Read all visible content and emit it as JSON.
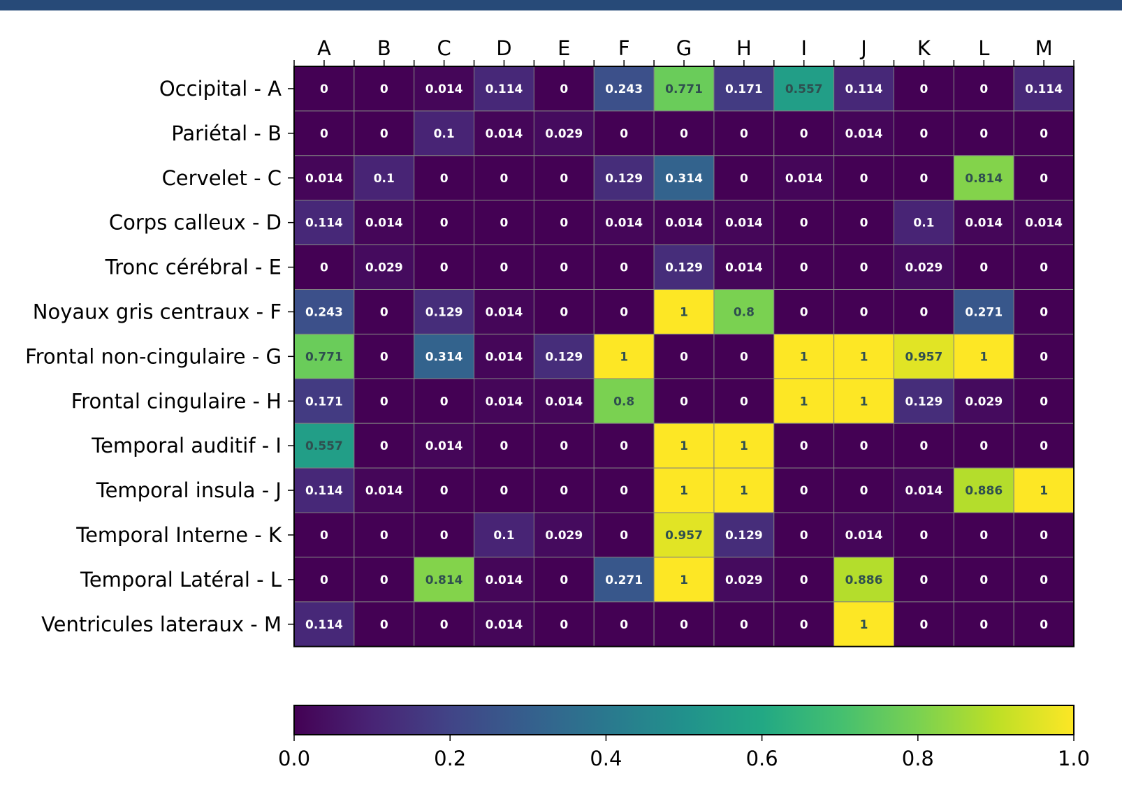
{
  "header": {
    "bar_color": "#274a78"
  },
  "chart_data": {
    "type": "heatmap",
    "x_labels": [
      "A",
      "B",
      "C",
      "D",
      "E",
      "F",
      "G",
      "H",
      "I",
      "J",
      "K",
      "L",
      "M"
    ],
    "y_labels": [
      "Occipital - A",
      "Pariétal - B",
      "Cervelet - C",
      "Corps calleux - D",
      "Tronc cérébral - E",
      "Noyaux gris centraux - F",
      "Frontal non-cingulaire - G",
      "Frontal cingulaire - H",
      "Temporal auditif - I",
      "Temporal insula - J",
      "Temporal Interne - K",
      "Temporal Latéral - L",
      "Ventricules lateraux - M"
    ],
    "values": [
      [
        0.0,
        0.0,
        0.014,
        0.114,
        0.0,
        0.243,
        0.771,
        0.171,
        0.557,
        0.114,
        0.0,
        0.0,
        0.114
      ],
      [
        0.0,
        0.0,
        0.1,
        0.014,
        0.029,
        0.0,
        0.0,
        0.0,
        0.0,
        0.014,
        0.0,
        0.0,
        0.0
      ],
      [
        0.014,
        0.1,
        0.0,
        0.0,
        0.0,
        0.129,
        0.314,
        0.0,
        0.014,
        0.0,
        0.0,
        0.814,
        0.0
      ],
      [
        0.114,
        0.014,
        0.0,
        0.0,
        0.0,
        0.014,
        0.014,
        0.014,
        0.0,
        0.0,
        0.1,
        0.014,
        0.014
      ],
      [
        0.0,
        0.029,
        0.0,
        0.0,
        0.0,
        0.0,
        0.129,
        0.014,
        0.0,
        0.0,
        0.029,
        0.0,
        0.0
      ],
      [
        0.243,
        0.0,
        0.129,
        0.014,
        0.0,
        0.0,
        1.0,
        0.8,
        0.0,
        0.0,
        0.0,
        0.271,
        0.0
      ],
      [
        0.771,
        0.0,
        0.314,
        0.014,
        0.129,
        1.0,
        0.0,
        0.0,
        1.0,
        1.0,
        0.957,
        1.0,
        0.0
      ],
      [
        0.171,
        0.0,
        0.0,
        0.014,
        0.014,
        0.8,
        0.0,
        0.0,
        1.0,
        1.0,
        0.129,
        0.029,
        0.0
      ],
      [
        0.557,
        0.0,
        0.014,
        0.0,
        0.0,
        0.0,
        1.0,
        1.0,
        0.0,
        0.0,
        0.0,
        0.0,
        0.0
      ],
      [
        0.114,
        0.014,
        0.0,
        0.0,
        0.0,
        0.0,
        1.0,
        1.0,
        0.0,
        0.0,
        0.014,
        0.886,
        1.0
      ],
      [
        0.0,
        0.0,
        0.0,
        0.1,
        0.029,
        0.0,
        0.957,
        0.129,
        0.0,
        0.014,
        0.0,
        0.0,
        0.0
      ],
      [
        0.0,
        0.0,
        0.814,
        0.014,
        0.0,
        0.271,
        1.0,
        0.029,
        0.0,
        0.886,
        0.0,
        0.0,
        0.0
      ],
      [
        0.114,
        0.0,
        0.0,
        0.014,
        0.0,
        0.0,
        0.0,
        0.0,
        0.0,
        1.0,
        0.0,
        0.0,
        0.0
      ]
    ],
    "colormap": "viridis",
    "value_range": [
      0.0,
      1.0
    ],
    "x_axis_position": "top",
    "colorbar": {
      "orientation": "horizontal",
      "position": "bottom",
      "ticks": [
        0.0,
        0.2,
        0.4,
        0.6,
        0.8,
        1.0
      ],
      "tick_labels": [
        "0.0",
        "0.2",
        "0.4",
        "0.6",
        "0.8",
        "1.0"
      ]
    },
    "grid": true,
    "colors": {
      "grid_line": "#808080",
      "light_text": "#ffffff",
      "dark_text": "#2f4f4f"
    }
  }
}
